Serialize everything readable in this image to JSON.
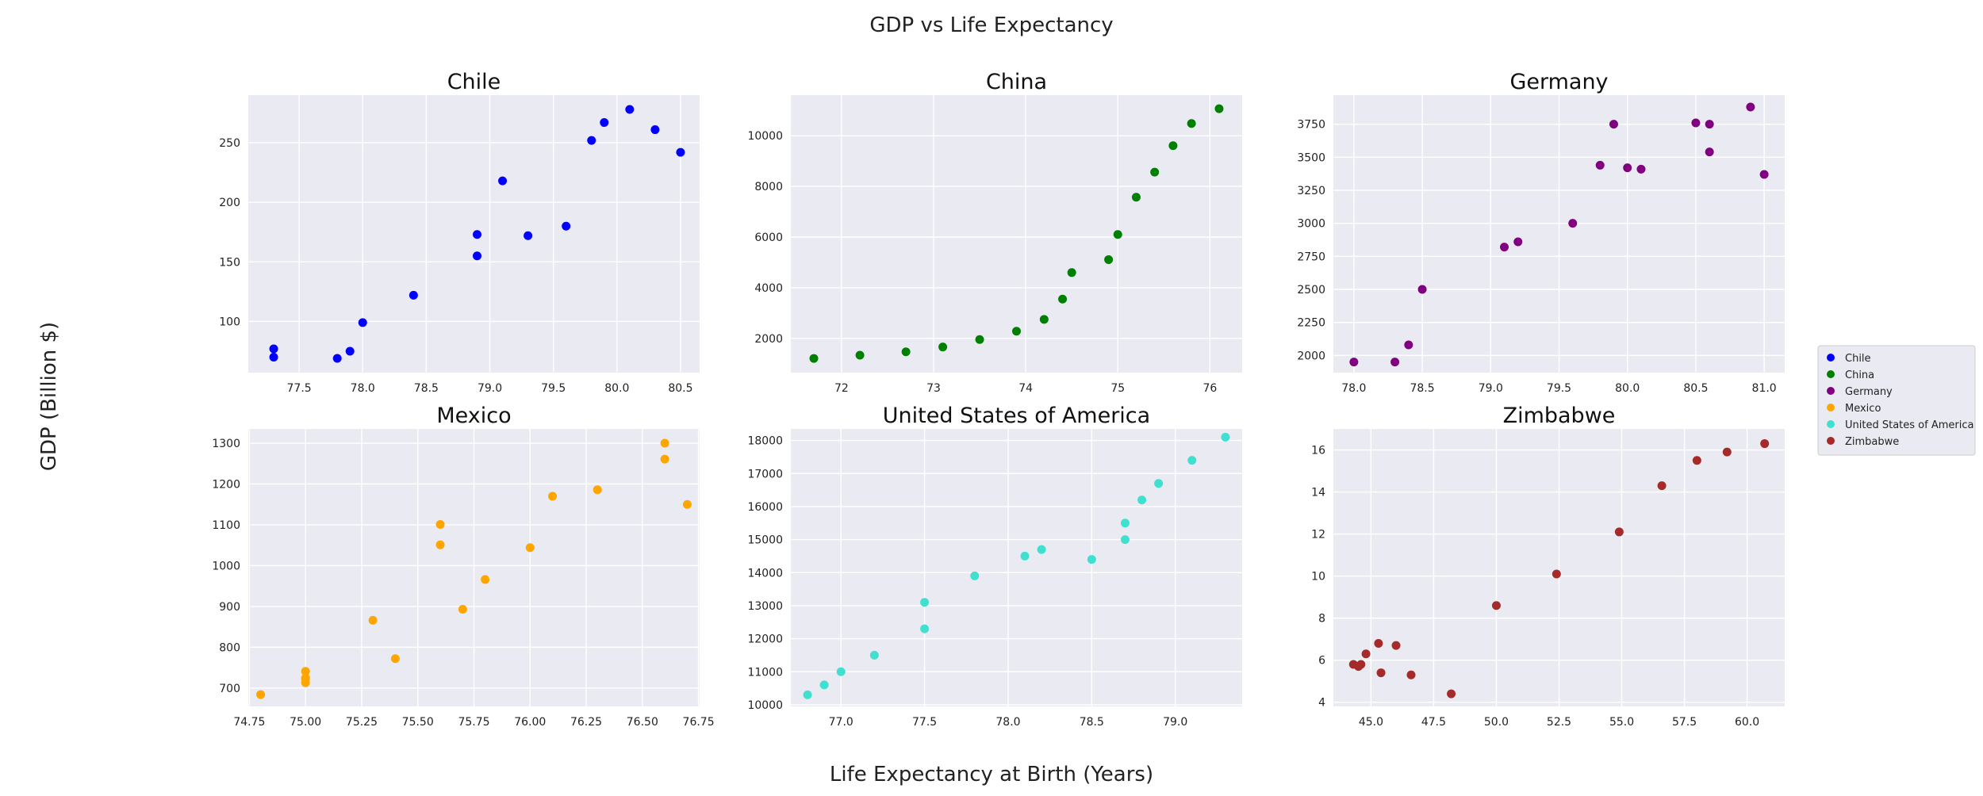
{
  "figure": {
    "title": "GDP vs Life Expectancy",
    "xlabel": "Life Expectancy at Birth (Years)",
    "ylabel": "GDP (Billion $)",
    "legend_placement": "right-center"
  },
  "style": {
    "panel_bg": "#eaeaf2",
    "grid_color": "#ffffff",
    "tick_color": "#222222"
  },
  "chart_data": [
    {
      "type": "scatter",
      "title": "Chile",
      "series": [
        {
          "name": "Chile",
          "color": "#0000ff",
          "x": [
            77.3,
            77.3,
            77.8,
            77.9,
            78.0,
            78.4,
            78.9,
            78.9,
            79.1,
            79.3,
            79.6,
            79.8,
            79.9,
            80.1,
            80.3,
            80.5
          ],
          "y": [
            70,
            77,
            69,
            75,
            99,
            122,
            155,
            173,
            218,
            172,
            180,
            252,
            267,
            278,
            261,
            242
          ]
        }
      ],
      "xlim": [
        77.1,
        80.65
      ],
      "ylim": [
        57,
        290
      ],
      "xticks": [
        77.5,
        78.0,
        78.5,
        79.0,
        79.5,
        80.0,
        80.5
      ],
      "xtick_labels": [
        "77.5",
        "78.0",
        "78.5",
        "79.0",
        "79.5",
        "80.0",
        "80.5"
      ],
      "yticks": [
        100,
        150,
        200,
        250
      ],
      "ytick_labels": [
        "100",
        "150",
        "200",
        "250"
      ],
      "grid": true
    },
    {
      "type": "scatter",
      "title": "China",
      "series": [
        {
          "name": "China",
          "color": "#008000",
          "x": [
            71.7,
            72.2,
            72.7,
            73.1,
            73.5,
            73.9,
            74.2,
            74.4,
            74.5,
            74.9,
            75.0,
            75.2,
            75.4,
            75.6,
            75.8,
            76.1
          ],
          "y": [
            1211,
            1339,
            1470,
            1661,
            1955,
            2286,
            2752,
            3552,
            4598,
            5110,
            6101,
            7573,
            8561,
            9607,
            10482,
            11065
          ]
        }
      ],
      "xlim": [
        71.45,
        76.35
      ],
      "ylim": [
        650,
        11600
      ],
      "xticks": [
        72,
        73,
        74,
        75,
        76
      ],
      "xtick_labels": [
        "72",
        "73",
        "74",
        "75",
        "76"
      ],
      "yticks": [
        2000,
        4000,
        6000,
        8000,
        10000
      ],
      "ytick_labels": [
        "2000",
        "4000",
        "6000",
        "8000",
        "10000"
      ],
      "grid": true
    },
    {
      "type": "scatter",
      "title": "Germany",
      "series": [
        {
          "name": "Germany",
          "color": "#800080",
          "x": [
            78.0,
            78.3,
            78.4,
            78.5,
            79.1,
            79.2,
            79.6,
            79.8,
            79.9,
            80.0,
            80.1,
            80.5,
            80.6,
            80.6,
            80.9,
            81.0
          ],
          "y": [
            1950,
            1950,
            2080,
            2500,
            2820,
            2860,
            3000,
            3440,
            3750,
            3420,
            3410,
            3760,
            3750,
            3540,
            3880,
            3370
          ]
        }
      ],
      "xlim": [
        77.85,
        81.15
      ],
      "ylim": [
        1870,
        3970
      ],
      "xticks": [
        78.0,
        78.5,
        79.0,
        79.5,
        80.0,
        80.5,
        81.0
      ],
      "xtick_labels": [
        "78.0",
        "78.5",
        "79.0",
        "79.5",
        "80.0",
        "80.5",
        "81.0"
      ],
      "yticks": [
        2000,
        2250,
        2500,
        2750,
        3000,
        3250,
        3500,
        3750
      ],
      "ytick_labels": [
        "2000",
        "2250",
        "2500",
        "2750",
        "3000",
        "3250",
        "3500",
        "3750"
      ],
      "grid": true
    },
    {
      "type": "scatter",
      "title": "Mexico",
      "series": [
        {
          "name": "Mexico",
          "color": "#ffa500",
          "x": [
            74.8,
            75.0,
            75.0,
            75.0,
            75.0,
            75.3,
            75.4,
            75.6,
            75.6,
            75.7,
            75.8,
            76.0,
            76.1,
            76.3,
            76.6,
            76.6,
            76.7
          ],
          "y": [
            684,
            741,
            725,
            713,
            722,
            866,
            772,
            1051,
            1101,
            893,
            966,
            1044,
            1170,
            1186,
            1261,
            1300,
            1150
          ]
        }
      ],
      "xlim": [
        74.745,
        76.755
      ],
      "ylim": [
        655,
        1335
      ],
      "xticks": [
        74.75,
        75.0,
        75.25,
        75.5,
        75.75,
        76.0,
        76.25,
        76.5,
        76.75
      ],
      "xtick_labels": [
        "74.75",
        "75.00",
        "75.25",
        "75.50",
        "75.75",
        "76.00",
        "76.25",
        "76.50",
        "76.75"
      ],
      "yticks": [
        700,
        800,
        900,
        1000,
        1100,
        1200,
        1300
      ],
      "ytick_labels": [
        "700",
        "800",
        "900",
        "1000",
        "1100",
        "1200",
        "1300"
      ],
      "grid": true
    },
    {
      "type": "scatter",
      "title": "United States of America",
      "series": [
        {
          "name": "United States of America",
          "color": "#40e0d0",
          "x": [
            76.8,
            76.9,
            77.0,
            77.2,
            77.5,
            77.5,
            77.8,
            78.1,
            78.2,
            78.5,
            78.7,
            78.7,
            78.8,
            78.9,
            79.1,
            79.3
          ],
          "y": [
            10300,
            10600,
            11000,
            11500,
            12300,
            13100,
            13900,
            14500,
            14700,
            14400,
            15000,
            15500,
            16200,
            16700,
            17400,
            18100
          ]
        }
      ],
      "xlim": [
        76.7,
        79.4
      ],
      "ylim": [
        9950,
        18350
      ],
      "xticks": [
        77.0,
        77.5,
        78.0,
        78.5,
        79.0
      ],
      "xtick_labels": [
        "77.0",
        "77.5",
        "78.0",
        "78.5",
        "79.0"
      ],
      "yticks": [
        10000,
        11000,
        12000,
        13000,
        14000,
        15000,
        16000,
        17000,
        18000
      ],
      "ytick_labels": [
        "10000",
        "11000",
        "12000",
        "13000",
        "14000",
        "15000",
        "16000",
        "17000",
        "18000"
      ],
      "grid": true
    },
    {
      "type": "scatter",
      "title": "Zimbabwe",
      "series": [
        {
          "name": "Zimbabwe",
          "color": "#a52a2a",
          "x": [
            44.3,
            44.5,
            44.6,
            44.8,
            45.3,
            45.4,
            46.0,
            46.6,
            48.2,
            50.0,
            52.4,
            54.9,
            56.6,
            58.0,
            59.2,
            60.7
          ],
          "y": [
            5.8,
            5.7,
            5.8,
            6.3,
            6.8,
            5.4,
            6.7,
            5.3,
            4.4,
            8.6,
            10.1,
            12.1,
            14.3,
            15.5,
            15.9,
            16.3
          ]
        }
      ],
      "xlim": [
        43.5,
        61.5
      ],
      "ylim": [
        3.8,
        17.0
      ],
      "xticks": [
        45.0,
        47.5,
        50.0,
        52.5,
        55.0,
        57.5,
        60.0
      ],
      "xtick_labels": [
        "45.0",
        "47.5",
        "50.0",
        "52.5",
        "55.0",
        "57.5",
        "60.0"
      ],
      "yticks": [
        4,
        6,
        8,
        10,
        12,
        14,
        16
      ],
      "ytick_labels": [
        "4",
        "6",
        "8",
        "10",
        "12",
        "14",
        "16"
      ],
      "grid": true
    }
  ]
}
